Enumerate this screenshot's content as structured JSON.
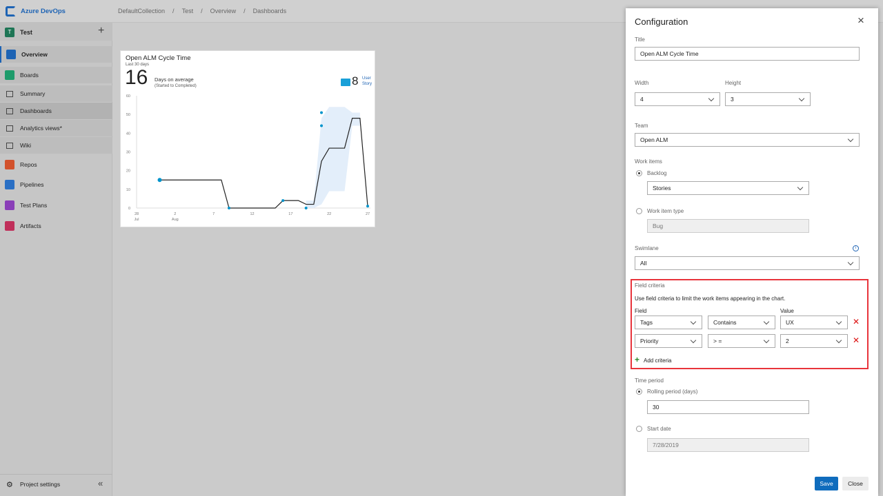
{
  "app": {
    "name": "Azure DevOps"
  },
  "breadcrumb": [
    "DefaultCollection",
    "Test",
    "Overview",
    "Dashboards"
  ],
  "sidebar": {
    "project": "Test",
    "project_initial": "T",
    "items": [
      {
        "label": "Overview",
        "icon": "overview-icon",
        "color": "#1d63b4"
      },
      {
        "label": "Boards",
        "icon": "boards-icon",
        "color": "#1e9b6b"
      },
      {
        "label": "Summary",
        "icon": "summary-icon"
      },
      {
        "label": "Dashboards",
        "icon": "dashboards-icon"
      },
      {
        "label": "Analytics views*",
        "icon": "analytics-icon"
      },
      {
        "label": "Wiki",
        "icon": "wiki-icon"
      },
      {
        "label": "Repos",
        "icon": "repos-icon",
        "color": "#d2522c"
      },
      {
        "label": "Pipelines",
        "icon": "pipelines-icon",
        "color": "#2a6fc4"
      },
      {
        "label": "Test Plans",
        "icon": "test-plans-icon",
        "color": "#8a3fb8"
      },
      {
        "label": "Artifacts",
        "icon": "artifacts-icon",
        "color": "#c0305a"
      }
    ],
    "settings": "Project settings"
  },
  "widget": {
    "title": "Open ALM Cycle Time",
    "subtitle": "Last 30 days",
    "big_number": "16",
    "metric_label": "Days on average",
    "metric_sub": "(Started to Completed)",
    "count": "8",
    "count_label1": "User",
    "count_label2": "Story",
    "accent": "#0094cc"
  },
  "chart_data": {
    "type": "line",
    "title": "Open ALM Cycle Time",
    "ylim": [
      0,
      60
    ],
    "yticks": [
      0,
      10,
      20,
      30,
      40,
      50,
      60
    ],
    "xlim": [
      "2019-07-28",
      "2019-08-27"
    ],
    "xticks": [
      {
        "date": "2019-07-28",
        "label": "28",
        "sub": "Jul"
      },
      {
        "date": "2019-08-02",
        "label": "2",
        "sub": "Aug"
      },
      {
        "date": "2019-08-07",
        "label": "7",
        "sub": ""
      },
      {
        "date": "2019-08-12",
        "label": "12",
        "sub": ""
      },
      {
        "date": "2019-08-17",
        "label": "17",
        "sub": ""
      },
      {
        "date": "2019-08-22",
        "label": "22",
        "sub": ""
      },
      {
        "date": "2019-08-27",
        "label": "27",
        "sub": ""
      }
    ],
    "moving_average": [
      [
        "2019-07-31",
        15
      ],
      [
        "2019-08-08",
        15
      ],
      [
        "2019-08-09",
        0
      ],
      [
        "2019-08-15",
        0
      ],
      [
        "2019-08-16",
        4
      ],
      [
        "2019-08-18",
        4
      ],
      [
        "2019-08-19",
        2
      ],
      [
        "2019-08-20",
        2
      ],
      [
        "2019-08-21",
        25
      ],
      [
        "2019-08-22",
        32
      ],
      [
        "2019-08-24",
        32
      ],
      [
        "2019-08-25",
        48
      ],
      [
        "2019-08-26",
        48
      ],
      [
        "2019-08-27",
        1
      ]
    ],
    "std_dev_band": [
      [
        "2019-08-19",
        0,
        4
      ],
      [
        "2019-08-20",
        0,
        4
      ],
      [
        "2019-08-21",
        2,
        48
      ],
      [
        "2019-08-22",
        9,
        54
      ],
      [
        "2019-08-24",
        9,
        54
      ],
      [
        "2019-08-25",
        44,
        51
      ],
      [
        "2019-08-26",
        44,
        51
      ]
    ],
    "points": [
      [
        "2019-07-31",
        15
      ],
      [
        "2019-08-09",
        0
      ],
      [
        "2019-08-16",
        4
      ],
      [
        "2019-08-19",
        0
      ],
      [
        "2019-08-21",
        51
      ],
      [
        "2019-08-21",
        44
      ],
      [
        "2019-08-27",
        1
      ]
    ],
    "colors": {
      "line": "#222222",
      "points": "#0094cc",
      "band": "#e3eefa"
    }
  },
  "config": {
    "heading": "Configuration",
    "title_label": "Title",
    "title_value": "Open ALM Cycle Time",
    "width_label": "Width",
    "width_value": "4",
    "height_label": "Height",
    "height_value": "3",
    "team_label": "Team",
    "team_value": "Open ALM",
    "work_items_label": "Work items",
    "backlog_label": "Backlog",
    "backlog_value": "Stories",
    "wit_label": "Work item type",
    "wit_value": "Bug",
    "swimlane_label": "Swimlane",
    "swimlane_value": "All",
    "field_criteria": {
      "heading": "Field criteria",
      "description": "Use field criteria to limit the work items appearing in the chart.",
      "field_col": "Field",
      "value_col": "Value",
      "rows": [
        {
          "field": "Tags",
          "op": "Contains",
          "value": "UX"
        },
        {
          "field": "Priority",
          "op": "> =",
          "value": "2"
        }
      ],
      "add_label": "Add criteria"
    },
    "time_period_label": "Time period",
    "rolling_label": "Rolling period (days)",
    "rolling_value": "30",
    "start_date_label": "Start date",
    "start_date_value": "7/28/2019",
    "save": "Save",
    "close": "Close"
  }
}
